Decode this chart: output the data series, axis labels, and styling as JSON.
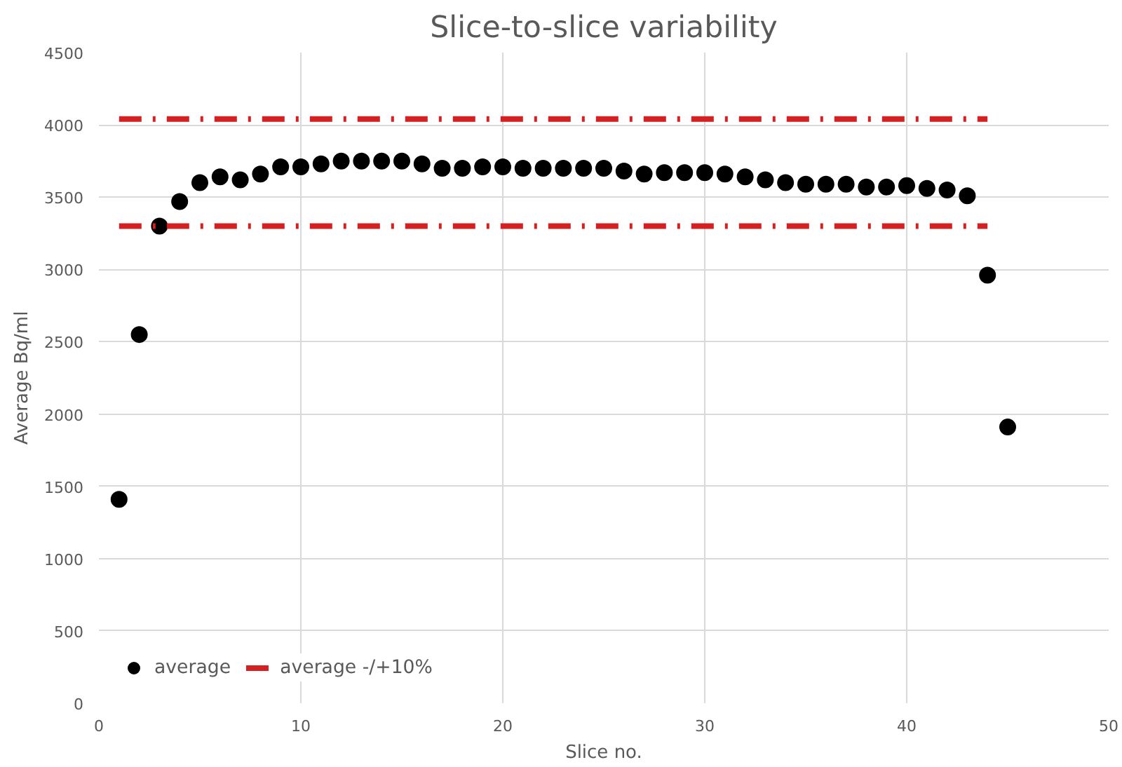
{
  "chart_data": {
    "type": "scatter",
    "title": "Slice-to-slice variability",
    "xlabel": "Slice no.",
    "ylabel": "Average Bq/ml",
    "xlim": [
      0,
      50
    ],
    "xticks": [
      0,
      10,
      20,
      30,
      40,
      50
    ],
    "ylim": [
      0,
      4500
    ],
    "yticks": [
      0,
      500,
      1000,
      1500,
      2000,
      2500,
      3000,
      3500,
      4000,
      4500
    ],
    "grid": true,
    "legend": "bottom left",
    "marker": "circle",
    "series": [
      {
        "name": "average",
        "color": "#000000",
        "x": [
          1,
          2,
          3,
          4,
          5,
          6,
          7,
          8,
          9,
          10,
          11,
          12,
          13,
          14,
          15,
          16,
          17,
          18,
          19,
          20,
          21,
          22,
          23,
          24,
          25,
          26,
          27,
          28,
          29,
          30,
          31,
          32,
          33,
          34,
          35,
          36,
          37,
          38,
          39,
          40,
          41,
          42,
          43,
          44,
          45
        ],
        "values": [
          1410,
          2550,
          3300,
          3470,
          3600,
          3640,
          3620,
          3660,
          3710,
          3710,
          3730,
          3750,
          3750,
          3750,
          3750,
          3730,
          3700,
          3700,
          3710,
          3710,
          3700,
          3700,
          3700,
          3700,
          3700,
          3680,
          3660,
          3670,
          3670,
          3670,
          3660,
          3640,
          3620,
          3600,
          3590,
          3590,
          3590,
          3570,
          3570,
          3580,
          3560,
          3550,
          3510,
          2960,
          1910
        ]
      },
      {
        "name": "average -/+10%",
        "type": "line",
        "marker": "none",
        "line_style": "dashdot",
        "color": "#d42020",
        "x": [
          1,
          44
        ],
        "values": [
          4040,
          4040
        ]
      },
      {
        "type": "line",
        "marker": "none",
        "line_style": "dashdot",
        "color": "#d42020",
        "x": [
          1,
          44
        ],
        "values": [
          3300,
          3300
        ]
      }
    ]
  }
}
